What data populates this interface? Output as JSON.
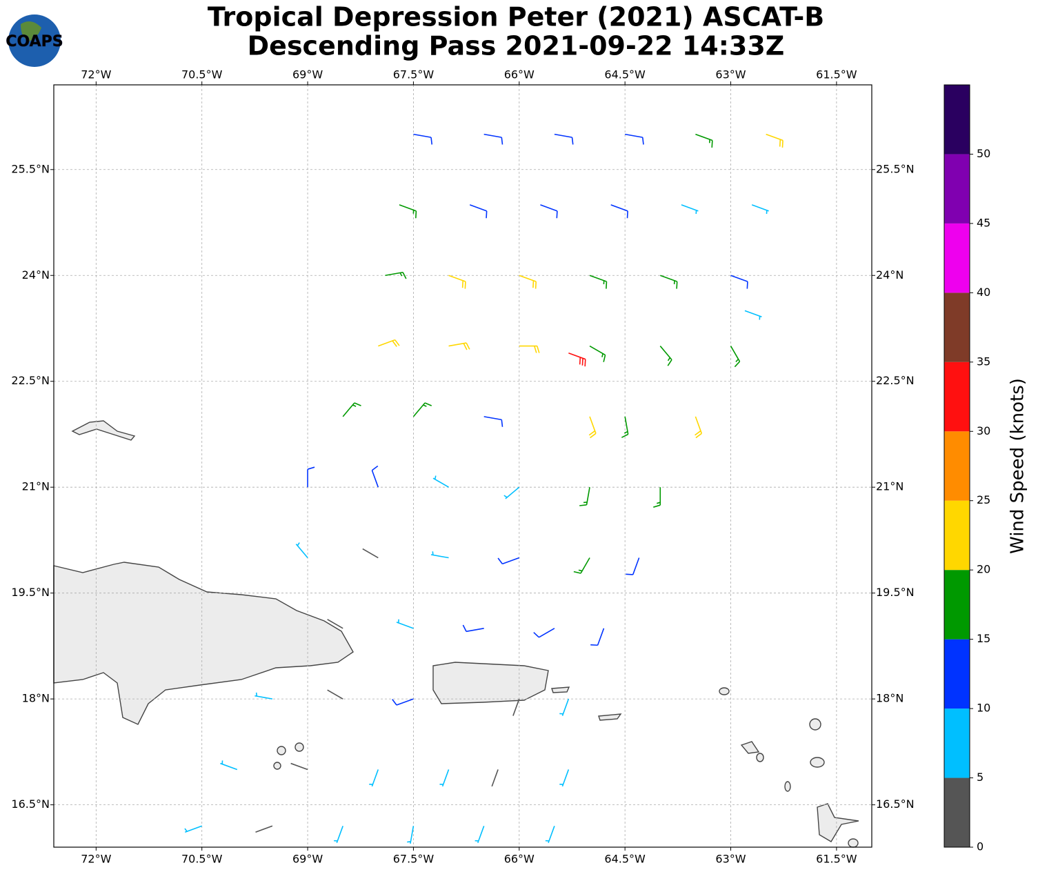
{
  "logo": "COAPS",
  "chart_data": {
    "type": "barb",
    "title": [
      "Tropical Depression Peter (2021) ASCAT-B",
      "Descending Pass 2021-09-22 14:33Z"
    ],
    "xlim": [
      -72.6,
      -61.0
    ],
    "ylim": [
      15.9,
      26.7
    ],
    "grid": true,
    "xticks": [
      {
        "value": -72,
        "label": "72°W"
      },
      {
        "value": -70.5,
        "label": "70.5°W"
      },
      {
        "value": -69,
        "label": "69°W"
      },
      {
        "value": -67.5,
        "label": "67.5°W"
      },
      {
        "value": -66,
        "label": "66°W"
      },
      {
        "value": -64.5,
        "label": "64.5°W"
      },
      {
        "value": -63,
        "label": "63°W"
      },
      {
        "value": -61.5,
        "label": "61.5°W"
      }
    ],
    "yticks": [
      {
        "value": 16.5,
        "label": "16.5°N"
      },
      {
        "value": 18,
        "label": "18°N"
      },
      {
        "value": 19.5,
        "label": "19.5°N"
      },
      {
        "value": 21,
        "label": "21°N"
      },
      {
        "value": 22.5,
        "label": "22.5°N"
      },
      {
        "value": 24,
        "label": "24°N"
      },
      {
        "value": 25.5,
        "label": "25.5°N"
      }
    ],
    "barbs": {
      "lon": [
        -67.5,
        -66.5,
        -65.5,
        -64.5,
        -63.5,
        -62.5,
        -67.7,
        -66.7,
        -65.7,
        -64.7,
        -63.7,
        -62.7,
        -67.9,
        -67,
        -66,
        -65,
        -64,
        -63,
        -62.8,
        -68,
        -67,
        -66,
        -65.3,
        -65,
        -64,
        -63,
        -68.5,
        -67.5,
        -66.5,
        -65,
        -64.5,
        -63.5,
        -69,
        -68,
        -67,
        -66,
        -65,
        -64,
        -69,
        -68,
        -67,
        -66,
        -65,
        -64.3,
        -68.5,
        -67.5,
        -66.5,
        -65.5,
        -64.8,
        -69.5,
        -68.5,
        -67.5,
        -66,
        -65.3,
        -70,
        -69,
        -68,
        -67,
        -66.3,
        -65.3,
        -70.5,
        -69.5,
        -68.5,
        -67.5,
        -66.5,
        -65.5
      ],
      "lat": [
        26,
        26,
        26,
        26,
        26,
        26,
        25,
        25,
        25,
        25,
        25,
        25,
        24,
        24,
        24,
        24,
        24,
        24,
        23.5,
        23,
        23,
        23,
        22.9,
        23,
        23,
        23,
        22,
        22,
        22,
        22,
        22,
        22,
        21,
        21,
        21,
        21,
        21,
        21,
        20,
        20,
        20,
        20,
        20,
        20,
        19,
        19,
        19,
        19,
        19,
        18,
        18,
        18,
        18,
        18,
        17,
        17,
        17,
        17,
        17,
        17,
        16.2,
        16.2,
        16.2,
        16.2,
        16.2,
        16.2
      ],
      "speed": [
        12,
        12,
        12,
        12,
        17,
        22,
        17,
        12,
        12,
        12,
        8,
        8,
        18,
        22,
        21,
        17,
        17,
        12,
        8,
        22,
        23,
        21,
        32,
        18,
        17,
        17,
        17,
        18,
        12,
        22,
        17,
        22,
        12,
        13,
        7,
        8,
        17,
        18,
        8,
        4,
        8,
        12,
        16,
        13,
        3,
        7,
        12,
        12,
        12,
        7,
        3,
        11,
        4,
        8,
        6,
        4,
        8,
        7,
        4,
        8,
        6,
        4,
        7,
        8,
        8,
        8
      ],
      "direction": [
        100,
        100,
        100,
        100,
        110,
        110,
        110,
        110,
        110,
        110,
        110,
        110,
        80,
        110,
        110,
        110,
        110,
        110,
        110,
        70,
        80,
        90,
        110,
        120,
        140,
        150,
        40,
        40,
        100,
        160,
        170,
        160,
        0,
        340,
        300,
        230,
        190,
        180,
        320,
        300,
        280,
        250,
        210,
        200,
        300,
        290,
        260,
        240,
        200,
        280,
        300,
        250,
        200,
        200,
        290,
        290,
        200,
        200,
        200,
        200,
        250,
        250,
        200,
        190,
        200,
        200
      ]
    },
    "colorbar": {
      "label": "Wind Speed (knots)",
      "ylim": [
        0,
        55
      ],
      "yticks": [
        0,
        5,
        10,
        15,
        20,
        25,
        30,
        35,
        40,
        45,
        50
      ],
      "colors": [
        "#555555",
        "#00bfff",
        "#0033ff",
        "#009900",
        "#ffd700",
        "#ff8c00",
        "#ff1010",
        "#7f3b28",
        "#ee00ee",
        "#8000b0",
        "#2a0060"
      ]
    }
  }
}
